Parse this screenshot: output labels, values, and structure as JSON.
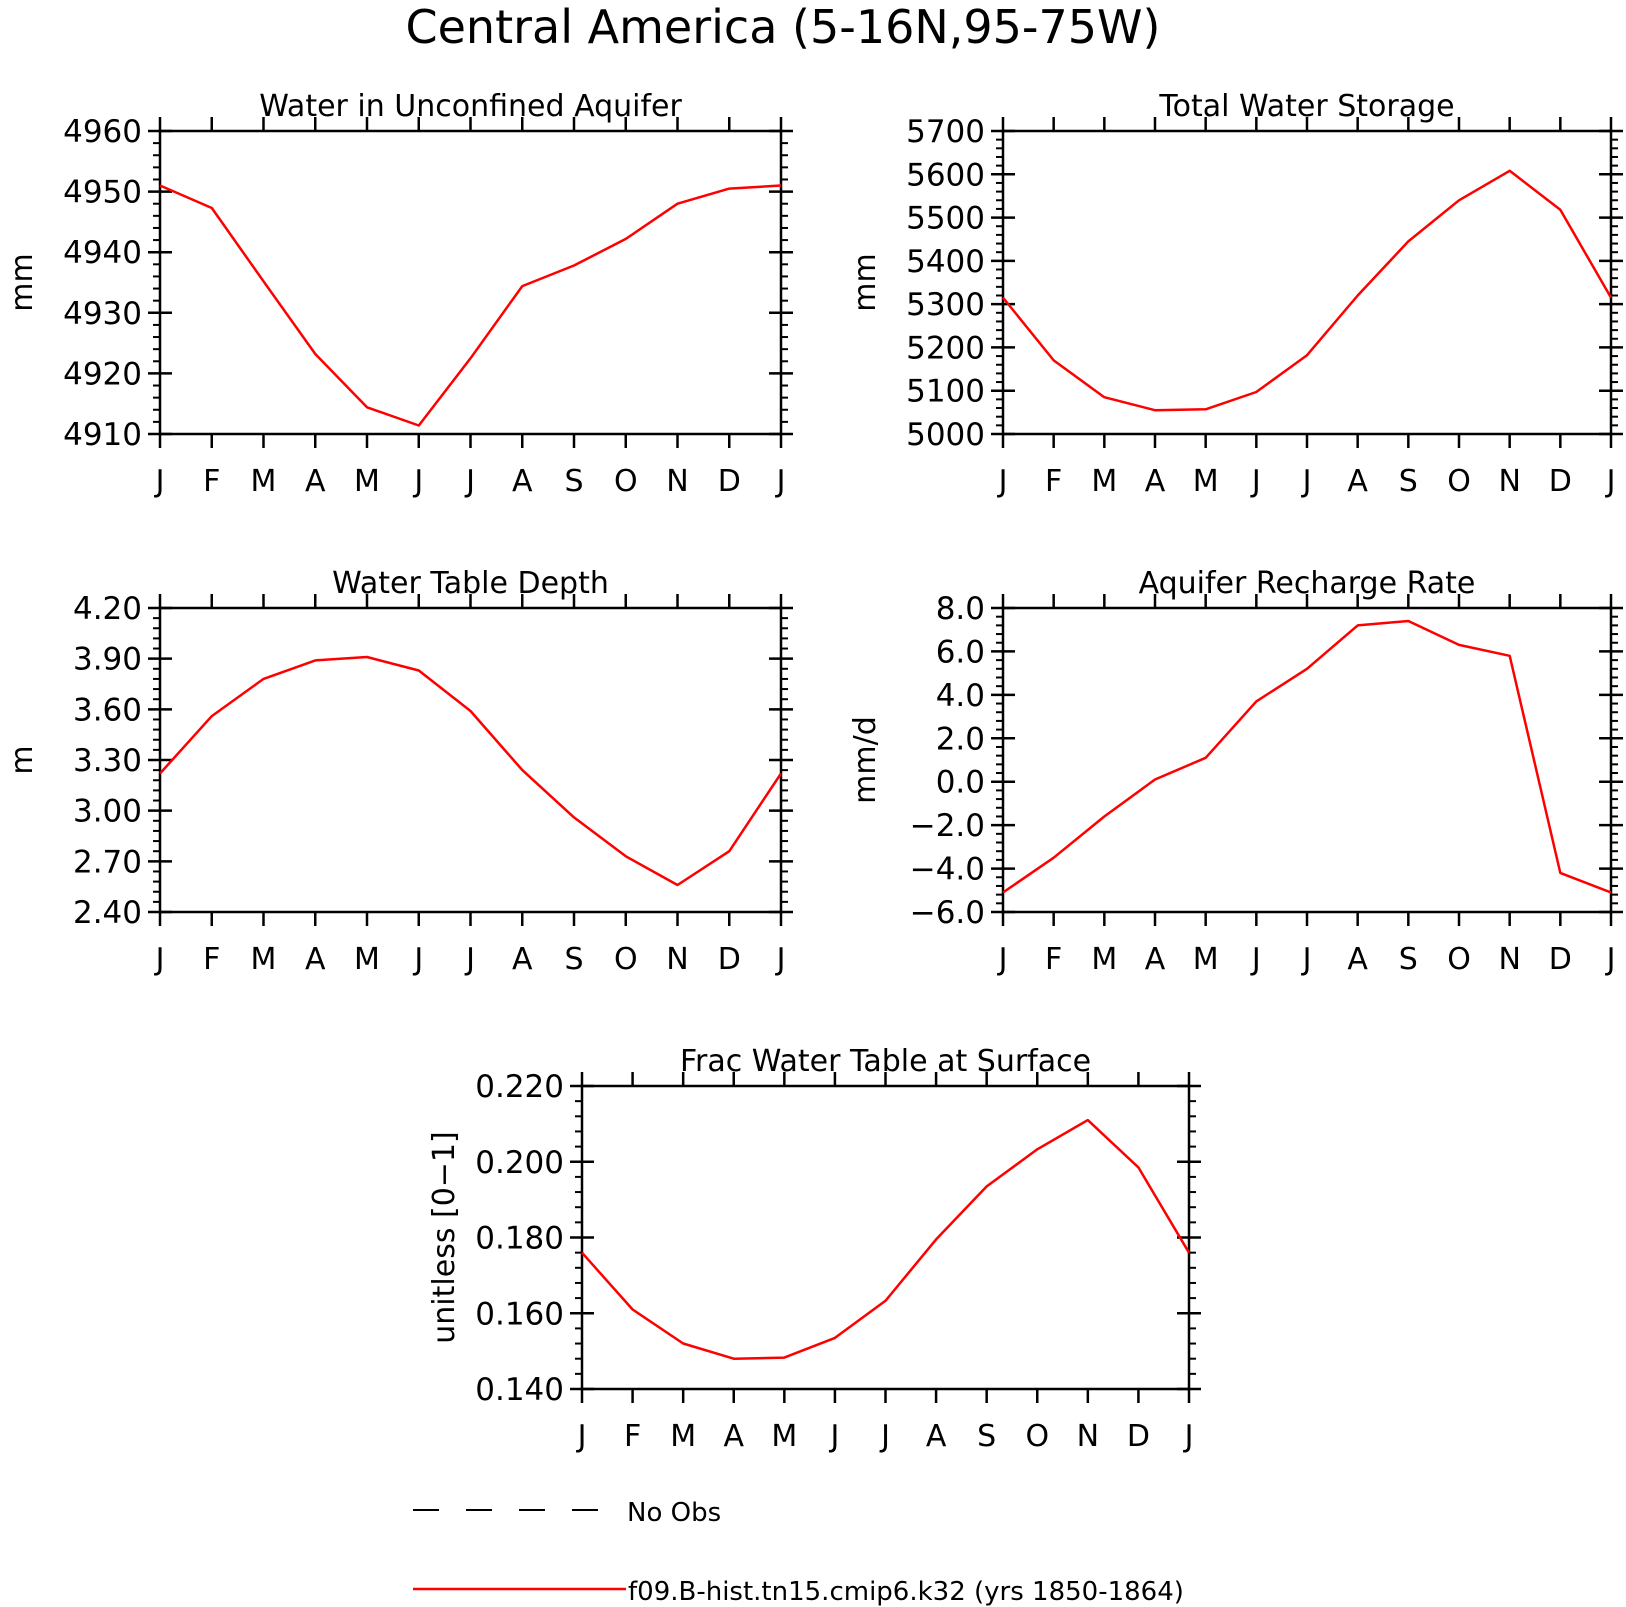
{
  "title": "Central America (5-16N,95-75W)",
  "legend": {
    "placement": "bottom-left",
    "entries": [
      {
        "label": "No Obs",
        "style": "dashed",
        "color": "#000000"
      },
      {
        "label": "f09.B-hist.tn15.cmip6.k32 (yrs 1850-1864)",
        "style": "solid",
        "color": "#ff0000"
      }
    ]
  },
  "colors": {
    "series": "#ff0000",
    "axes": "#000000"
  },
  "chart_data": [
    {
      "type": "line",
      "title": "Water in Unconfined Aquifer",
      "ylabel": "mm",
      "categories": [
        "J",
        "F",
        "M",
        "A",
        "M",
        "J",
        "J",
        "A",
        "S",
        "O",
        "N",
        "D",
        "J"
      ],
      "ylim": [
        4910,
        4960
      ],
      "yticks": [
        "4910",
        "4920",
        "4930",
        "4940",
        "4950",
        "4960"
      ],
      "series": [
        {
          "name": "f09.B-hist.tn15.cmip6.k32 (yrs 1850-1864)",
          "values": [
            4951,
            4947.3,
            4935.2,
            4923.2,
            4914.4,
            4911.4,
            4922.5,
            4934.4,
            4937.8,
            4942.2,
            4948,
            4950.5,
            4951
          ]
        }
      ]
    },
    {
      "type": "line",
      "title": "Total Water Storage",
      "ylabel": "mm",
      "categories": [
        "J",
        "F",
        "M",
        "A",
        "M",
        "J",
        "J",
        "A",
        "S",
        "O",
        "N",
        "D",
        "J"
      ],
      "ylim": [
        5000,
        5700
      ],
      "yticks": [
        "5000",
        "5100",
        "5200",
        "5300",
        "5400",
        "5500",
        "5600",
        "5700"
      ],
      "series": [
        {
          "name": "f09.B-hist.tn15.cmip6.k32 (yrs 1850-1864)",
          "values": [
            5315,
            5170,
            5085,
            5055,
            5057,
            5097,
            5182,
            5320,
            5445,
            5540,
            5608,
            5518,
            5315
          ]
        }
      ]
    },
    {
      "type": "line",
      "title": "Water Table Depth",
      "ylabel": "m",
      "categories": [
        "J",
        "F",
        "M",
        "A",
        "M",
        "J",
        "J",
        "A",
        "S",
        "O",
        "N",
        "D",
        "J"
      ],
      "ylim": [
        2.4,
        4.2
      ],
      "yticks": [
        "2.40",
        "2.70",
        "3.00",
        "3.30",
        "3.60",
        "3.90",
        "4.20"
      ],
      "series": [
        {
          "name": "f09.B-hist.tn15.cmip6.k32 (yrs 1850-1864)",
          "values": [
            3.22,
            3.56,
            3.78,
            3.89,
            3.91,
            3.83,
            3.59,
            3.24,
            2.96,
            2.73,
            2.56,
            2.76,
            3.22
          ]
        }
      ]
    },
    {
      "type": "line",
      "title": "Aquifer Recharge Rate",
      "ylabel": "mm/d",
      "categories": [
        "J",
        "F",
        "M",
        "A",
        "M",
        "J",
        "J",
        "A",
        "S",
        "O",
        "N",
        "D",
        "J"
      ],
      "ylim": [
        -6,
        8
      ],
      "yticks": [
        "−6.0",
        "−4.0",
        "−2.0",
        "0.0",
        "2.0",
        "4.0",
        "6.0",
        "8.0"
      ],
      "series": [
        {
          "name": "f09.B-hist.tn15.cmip6.k32 (yrs 1850-1864)",
          "values": [
            -5.1,
            -3.5,
            -1.6,
            0.1,
            1.1,
            3.7,
            5.2,
            7.2,
            7.4,
            6.3,
            5.8,
            -4.2,
            -5.1
          ]
        }
      ]
    },
    {
      "type": "line",
      "title": "Frac Water Table at Surface",
      "ylabel": "unitless [0−1]",
      "categories": [
        "J",
        "F",
        "M",
        "A",
        "M",
        "J",
        "J",
        "A",
        "S",
        "O",
        "N",
        "D",
        "J"
      ],
      "ylim": [
        0.14,
        0.22
      ],
      "yticks": [
        "0.140",
        "0.160",
        "0.180",
        "0.200",
        "0.220"
      ],
      "series": [
        {
          "name": "f09.B-hist.tn15.cmip6.k32 (yrs 1850-1864)",
          "values": [
            0.176,
            0.161,
            0.152,
            0.148,
            0.1483,
            0.1535,
            0.1633,
            0.1795,
            0.1935,
            0.2033,
            0.211,
            0.1985,
            0.176
          ]
        }
      ]
    }
  ]
}
